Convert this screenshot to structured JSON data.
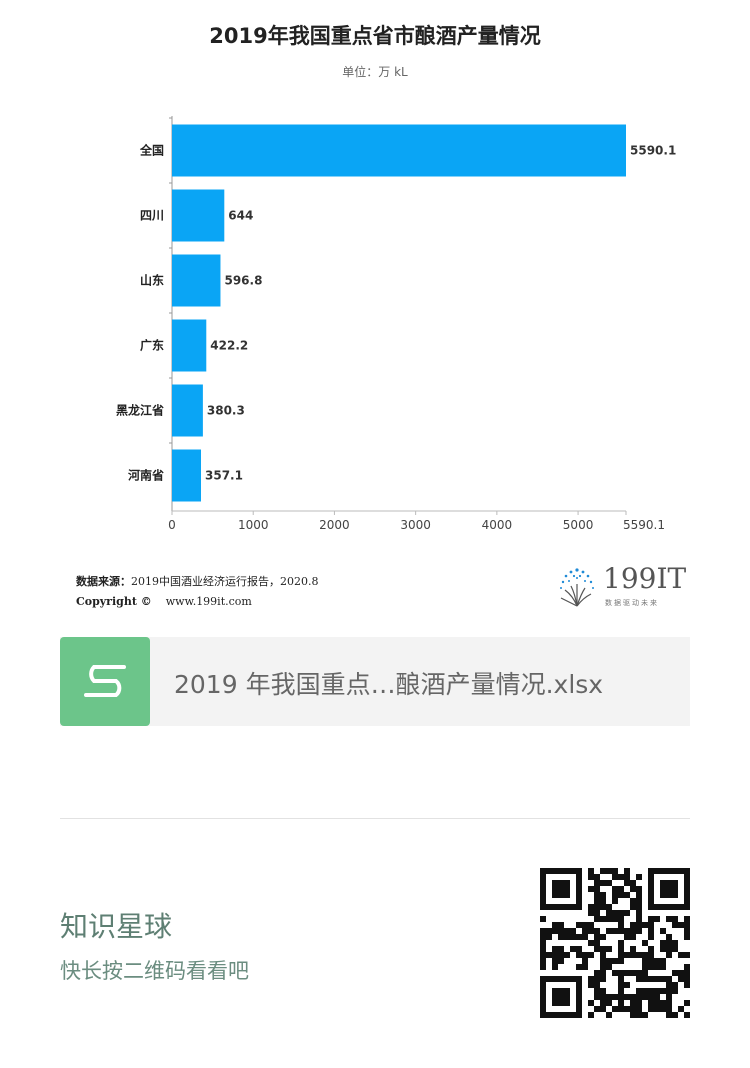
{
  "chart_data": {
    "type": "bar",
    "orientation": "horizontal",
    "title": "2019年我国重点省市酿酒产量情况",
    "subtitle": "单位：万 kL",
    "categories": [
      "全国",
      "四川",
      "山东",
      "广东",
      "黑龙江省",
      "河南省"
    ],
    "values": [
      5590.1,
      644,
      596.8,
      422.2,
      380.3,
      357.1
    ],
    "value_labels": [
      "5590.1",
      "644",
      "596.8",
      "422.2",
      "380.3",
      "357.1"
    ],
    "x_ticks": [
      "0",
      "1000",
      "2000",
      "3000",
      "4000",
      "5000",
      "5590.1"
    ],
    "x_tick_values": [
      0,
      1000,
      2000,
      3000,
      4000,
      5000,
      5590.1
    ],
    "xlim": [
      0,
      5590.1
    ],
    "bar_color": "#0aa5f5",
    "grid": false,
    "legend": "none"
  },
  "source": {
    "label": "数据来源：",
    "text": "2019中国酒业经济运行报告，2020.8",
    "copyright_label": "Copyright ©",
    "url": "www.199it.com"
  },
  "logo": {
    "text": "199IT",
    "tagline": "数据驱动未来"
  },
  "file": {
    "name": "2019 年我国重点…酿酒产量情况.xlsx",
    "icon": "spreadsheet-s-icon",
    "icon_color": "#6cc58a"
  },
  "promo": {
    "title": "知识星球",
    "subtitle": "快长按二维码看看吧",
    "qr_icon": "qr-code"
  }
}
